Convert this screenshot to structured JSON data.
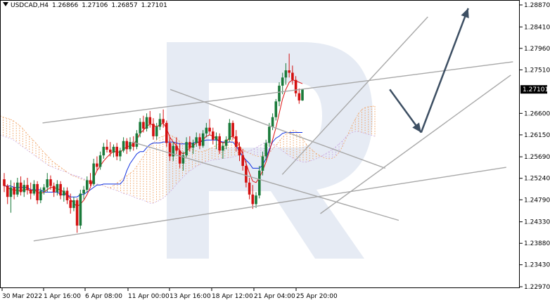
{
  "header": {
    "symbol": "USDCAD,H4",
    "open": "1.26866",
    "high": "1.27106",
    "low": "1.26857",
    "close": "1.27101"
  },
  "chart_data": {
    "type": "candlestick",
    "symbol": "USDCAD",
    "timeframe": "H4",
    "current_price": 1.27101,
    "ylim": [
      1.2297,
      1.2887
    ],
    "y_ticks": [
      1.2887,
      1.2841,
      1.2796,
      1.2751,
      1.266,
      1.2615,
      1.2569,
      1.2524,
      1.2479,
      1.2433,
      1.2388,
      1.2343,
      1.2297
    ],
    "y_tick_labels": [
      "1.28870",
      "1.28410",
      "1.27960",
      "1.27510",
      "1.26600",
      "1.26150",
      "1.25690",
      "1.25240",
      "1.24790",
      "1.24330",
      "1.23880",
      "1.23430",
      "1.22970"
    ],
    "x_tick_labels": [
      "30 Mar 2022",
      "1 Apr 16:00",
      "6 Apr 08:00",
      "11 Apr 00:00",
      "13 Apr 16:00",
      "18 Apr 12:00",
      "21 Apr 04:00",
      "25 Apr 20:00"
    ],
    "x_tick_bar_index": [
      0,
      14,
      32,
      50,
      68,
      86,
      104,
      122
    ],
    "total_slots": 232,
    "candles": [
      [
        1.2522,
        1.2535,
        1.2495,
        1.2508
      ],
      [
        1.2508,
        1.2512,
        1.247,
        1.2485
      ],
      [
        1.2485,
        1.252,
        1.2452,
        1.2505
      ],
      [
        1.2505,
        1.2515,
        1.248,
        1.249
      ],
      [
        1.249,
        1.2525,
        1.2485,
        1.2515
      ],
      [
        1.2515,
        1.2528,
        1.2488,
        1.2495
      ],
      [
        1.2495,
        1.252,
        1.2485,
        1.251
      ],
      [
        1.251,
        1.2525,
        1.249,
        1.25
      ],
      [
        1.25,
        1.2515,
        1.248,
        1.2492
      ],
      [
        1.2492,
        1.252,
        1.2488,
        1.2512
      ],
      [
        1.2512,
        1.2518,
        1.247,
        1.2478
      ],
      [
        1.2478,
        1.2505,
        1.2472,
        1.2498
      ],
      [
        1.2498,
        1.2512,
        1.249,
        1.2505
      ],
      [
        1.2505,
        1.2535,
        1.2495,
        1.2522
      ],
      [
        1.2522,
        1.253,
        1.25,
        1.2508
      ],
      [
        1.2508,
        1.2515,
        1.2485,
        1.2495
      ],
      [
        1.2495,
        1.252,
        1.2488,
        1.2512
      ],
      [
        1.2512,
        1.2518,
        1.248,
        1.2488
      ],
      [
        1.2488,
        1.2505,
        1.2475,
        1.2498
      ],
      [
        1.2498,
        1.2505,
        1.247,
        1.2478
      ],
      [
        1.2478,
        1.2492,
        1.245,
        1.2462
      ],
      [
        1.2462,
        1.2485,
        1.2455,
        1.2478
      ],
      [
        1.2478,
        1.2482,
        1.241,
        1.2425
      ],
      [
        1.2425,
        1.25,
        1.2418,
        1.2492
      ],
      [
        1.2492,
        1.2508,
        1.248,
        1.25
      ],
      [
        1.25,
        1.2528,
        1.2495,
        1.252
      ],
      [
        1.252,
        1.2535,
        1.2508,
        1.2512
      ],
      [
        1.2512,
        1.2565,
        1.2508,
        1.2555
      ],
      [
        1.2555,
        1.257,
        1.254,
        1.2548
      ],
      [
        1.2548,
        1.258,
        1.2542,
        1.2572
      ],
      [
        1.2572,
        1.2598,
        1.2565,
        1.259
      ],
      [
        1.259,
        1.2605,
        1.2578,
        1.2584
      ],
      [
        1.2584,
        1.26,
        1.257,
        1.2578
      ],
      [
        1.2578,
        1.2595,
        1.2568,
        1.259
      ],
      [
        1.259,
        1.2598,
        1.2562,
        1.257
      ],
      [
        1.257,
        1.2588,
        1.256,
        1.2582
      ],
      [
        1.2582,
        1.261,
        1.2578,
        1.2602
      ],
      [
        1.2602,
        1.2608,
        1.2575,
        1.2585
      ],
      [
        1.2585,
        1.261,
        1.258,
        1.26
      ],
      [
        1.26,
        1.2612,
        1.2582,
        1.259
      ],
      [
        1.259,
        1.2625,
        1.2585,
        1.2618
      ],
      [
        1.2618,
        1.265,
        1.261,
        1.2642
      ],
      [
        1.2642,
        1.2655,
        1.262,
        1.2628
      ],
      [
        1.2628,
        1.266,
        1.2622,
        1.2652
      ],
      [
        1.2652,
        1.2665,
        1.263,
        1.2638
      ],
      [
        1.2638,
        1.265,
        1.2605,
        1.2612
      ],
      [
        1.2612,
        1.264,
        1.2605,
        1.2632
      ],
      [
        1.2632,
        1.266,
        1.2625,
        1.2648
      ],
      [
        1.2648,
        1.2668,
        1.263,
        1.264
      ],
      [
        1.264,
        1.2645,
        1.259,
        1.2598
      ],
      [
        1.2598,
        1.261,
        1.256,
        1.257
      ],
      [
        1.257,
        1.26,
        1.256,
        1.2592
      ],
      [
        1.2592,
        1.261,
        1.2575,
        1.2582
      ],
      [
        1.2582,
        1.2598,
        1.2545,
        1.2555
      ],
      [
        1.2555,
        1.258,
        1.254,
        1.2572
      ],
      [
        1.2572,
        1.261,
        1.2568,
        1.26
      ],
      [
        1.26,
        1.2612,
        1.258,
        1.2588
      ],
      [
        1.2588,
        1.2605,
        1.2575,
        1.2598
      ],
      [
        1.2598,
        1.262,
        1.259,
        1.261
      ],
      [
        1.261,
        1.2618,
        1.2585,
        1.2592
      ],
      [
        1.2592,
        1.2625,
        1.2588,
        1.2618
      ],
      [
        1.2618,
        1.264,
        1.261,
        1.263
      ],
      [
        1.263,
        1.2648,
        1.2615,
        1.2622
      ],
      [
        1.2622,
        1.263,
        1.2595,
        1.2605
      ],
      [
        1.2605,
        1.262,
        1.2585,
        1.2612
      ],
      [
        1.2612,
        1.2618,
        1.2575,
        1.2582
      ],
      [
        1.2582,
        1.26,
        1.2565,
        1.2592
      ],
      [
        1.2592,
        1.2612,
        1.2585,
        1.2605
      ],
      [
        1.2605,
        1.2648,
        1.26,
        1.264
      ],
      [
        1.264,
        1.2645,
        1.2605,
        1.2612
      ],
      [
        1.2612,
        1.2625,
        1.258,
        1.259
      ],
      [
        1.259,
        1.26,
        1.256,
        1.2572
      ],
      [
        1.2572,
        1.2585,
        1.254,
        1.255
      ],
      [
        1.255,
        1.256,
        1.2505,
        1.2515
      ],
      [
        1.2515,
        1.2525,
        1.248,
        1.249
      ],
      [
        1.249,
        1.251,
        1.246,
        1.247
      ],
      [
        1.247,
        1.2495,
        1.2462,
        1.2488
      ],
      [
        1.2488,
        1.255,
        1.2482,
        1.254
      ],
      [
        1.254,
        1.258,
        1.253,
        1.257
      ],
      [
        1.257,
        1.2605,
        1.2562,
        1.2598
      ],
      [
        1.2598,
        1.264,
        1.259,
        1.2632
      ],
      [
        1.2632,
        1.266,
        1.2625,
        1.2652
      ],
      [
        1.2652,
        1.269,
        1.2645,
        1.2685
      ],
      [
        1.2685,
        1.2725,
        1.2675,
        1.2718
      ],
      [
        1.2718,
        1.2745,
        1.27,
        1.2735
      ],
      [
        1.2735,
        1.2765,
        1.272,
        1.275
      ],
      [
        1.275,
        1.2785,
        1.2735,
        1.2745
      ],
      [
        1.2745,
        1.276,
        1.272,
        1.273
      ],
      [
        1.273,
        1.2738,
        1.2695,
        1.2702
      ],
      [
        1.2702,
        1.2712,
        1.268,
        1.2687
      ],
      [
        1.2687,
        1.2711,
        1.2686,
        1.271
      ]
    ],
    "tenkan": [
      1.251,
      1.2505,
      1.25,
      1.25,
      1.2498,
      1.2498,
      1.25,
      1.25,
      1.2498,
      1.25,
      1.2495,
      1.2492,
      1.2495,
      1.25,
      1.2505,
      1.2505,
      1.2502,
      1.25,
      1.2495,
      1.249,
      1.248,
      1.2472,
      1.2465,
      1.247,
      1.2478,
      1.249,
      1.2505,
      1.2525,
      1.254,
      1.255,
      1.256,
      1.2568,
      1.2575,
      1.258,
      1.258,
      1.2578,
      1.2585,
      1.259,
      1.2592,
      1.2595,
      1.2605,
      1.2618,
      1.2625,
      1.2632,
      1.2638,
      1.2635,
      1.2632,
      1.2636,
      1.264,
      1.2628,
      1.261,
      1.26,
      1.2592,
      1.258,
      1.2575,
      1.258,
      1.2588,
      1.2592,
      1.2598,
      1.26,
      1.2605,
      1.2612,
      1.2615,
      1.2612,
      1.2608,
      1.26,
      1.2598,
      1.26,
      1.261,
      1.2612,
      1.2605,
      1.2592,
      1.2575,
      1.2555,
      1.2535,
      1.2518,
      1.2515,
      1.2525,
      1.254,
      1.2558,
      1.258,
      1.2605,
      1.263,
      1.266,
      1.269,
      1.271,
      1.2725,
      1.273,
      1.2728,
      1.2725,
      1.2722
    ],
    "kijun": [
      1.2508,
      1.2508,
      1.2508,
      1.2505,
      1.2505,
      1.2505,
      1.2505,
      1.2505,
      1.25,
      1.25,
      1.25,
      1.25,
      1.2495,
      1.2495,
      1.2495,
      1.2495,
      1.2495,
      1.249,
      1.249,
      1.249,
      1.2485,
      1.2485,
      1.2485,
      1.249,
      1.249,
      1.2495,
      1.25,
      1.2505,
      1.251,
      1.251,
      1.2512,
      1.2512,
      1.2512,
      1.2512,
      1.2512,
      1.2512,
      1.252,
      1.254,
      1.2555,
      1.2565,
      1.2575,
      1.258,
      1.258,
      1.2588,
      1.2595,
      1.2598,
      1.2598,
      1.2598,
      1.26,
      1.26,
      1.26,
      1.26,
      1.2598,
      1.2596,
      1.2596,
      1.2596,
      1.2596,
      1.2598,
      1.26,
      1.26,
      1.2602,
      1.2604,
      1.2604,
      1.2604,
      1.2604,
      1.2602,
      1.26,
      1.26,
      1.26,
      1.26,
      1.2592,
      1.258,
      1.257,
      1.2562,
      1.2555,
      1.2545,
      1.2545,
      1.2545,
      1.2552,
      1.2565,
      1.2585,
      1.26,
      1.2608,
      1.2612,
      1.2618,
      1.262,
      1.262,
      1.262,
      1.262,
      1.262,
      1.262
    ],
    "cloud_a": [
      1.2655,
      1.2652,
      1.265,
      1.2648,
      1.2645,
      1.264,
      1.2635,
      1.2628,
      1.262,
      1.2612,
      1.2605,
      1.2598,
      1.259,
      1.2582,
      1.2575,
      1.2568,
      1.256,
      1.2555,
      1.255,
      1.2545,
      1.254,
      1.2535,
      1.253,
      1.2528,
      1.2525,
      1.2522,
      1.252,
      1.2518,
      1.2515,
      1.2512,
      1.251,
      1.251,
      1.2508,
      1.2505,
      1.2505,
      1.251,
      1.2515,
      1.252,
      1.2525,
      1.253,
      1.2535,
      1.254,
      1.255,
      1.256,
      1.257,
      1.258,
      1.259,
      1.2598,
      1.2605,
      1.261,
      1.2612,
      1.2615,
      1.2615,
      1.2612,
      1.2608,
      1.2602,
      1.2598,
      1.2592,
      1.2588,
      1.2585,
      1.2582,
      1.258,
      1.258,
      1.2582,
      1.2585,
      1.2588,
      1.2592,
      1.2596,
      1.26,
      1.2603,
      1.2605,
      1.2605,
      1.26,
      1.2594,
      1.2588,
      1.2582,
      1.2578,
      1.2575,
      1.2572,
      1.257,
      1.257,
      1.2572,
      1.2575,
      1.258,
      1.2588,
      1.2596,
      1.2605,
      1.2612,
      1.2618,
      1.2622,
      1.2625,
      1.2622,
      1.2615,
      1.2605,
      1.2595,
      1.2588,
      1.2582,
      1.2576,
      1.2572,
      1.2568,
      1.2566,
      1.2565,
      1.2566,
      1.257,
      1.2578,
      1.259,
      1.2605,
      1.262,
      1.2635,
      1.2648,
      1.266,
      1.2668,
      1.2672,
      1.2674,
      1.2675,
      1.2675
    ],
    "cloud_b": [
      1.2615,
      1.2612,
      1.261,
      1.2608,
      1.2605,
      1.26,
      1.2595,
      1.259,
      1.2585,
      1.258,
      1.2575,
      1.257,
      1.2565,
      1.256,
      1.2555,
      1.255,
      1.2548,
      1.2545,
      1.2542,
      1.254,
      1.2538,
      1.2535,
      1.2532,
      1.253,
      1.2528,
      1.2525,
      1.2522,
      1.252,
      1.2518,
      1.2515,
      1.2512,
      1.251,
      1.2508,
      1.2505,
      1.2502,
      1.25,
      1.2498,
      1.2495,
      1.2492,
      1.249,
      1.2488,
      1.2485,
      1.2482,
      1.248,
      1.2478,
      1.2475,
      1.2472,
      1.2472,
      1.2475,
      1.2478,
      1.2482,
      1.2488,
      1.2495,
      1.2502,
      1.251,
      1.2518,
      1.2525,
      1.2532,
      1.2538,
      1.2543,
      1.2548,
      1.2552,
      1.2555,
      1.2558,
      1.256,
      1.2562,
      1.2563,
      1.2564,
      1.2565,
      1.2566,
      1.2567,
      1.2568,
      1.257,
      1.2572,
      1.2575,
      1.2578,
      1.258,
      1.2583,
      1.2586,
      1.259,
      1.2594,
      1.2598,
      1.26,
      1.2598,
      1.2595,
      1.259,
      1.2585,
      1.258,
      1.2575,
      1.257,
      1.2566,
      1.2562,
      1.256,
      1.2558,
      1.2558,
      1.256,
      1.2562,
      1.2565,
      1.2568,
      1.2572,
      1.2576,
      1.258,
      1.2585,
      1.259,
      1.2596,
      1.2602,
      1.261,
      1.2616,
      1.262,
      1.2622,
      1.2622,
      1.262,
      1.2618,
      1.2616,
      1.2614,
      1.2612
    ],
    "channels": [
      {
        "name": "upper-channel-top",
        "from": [
          19,
          1.264
        ],
        "to": [
          229,
          1.2768
        ]
      },
      {
        "name": "upper-channel-bottom",
        "from": [
          15,
          1.2393
        ],
        "to": [
          226,
          1.2547
        ]
      },
      {
        "name": "falling-channel-top",
        "from": [
          76,
          1.271
        ],
        "to": [
          172,
          1.2545
        ]
      },
      {
        "name": "falling-channel-bottom",
        "from": [
          59,
          1.26
        ],
        "to": [
          178,
          1.2436
        ]
      },
      {
        "name": "rising-channel-top",
        "from": [
          126,
          1.2532
        ],
        "to": [
          191,
          1.2862
        ]
      },
      {
        "name": "rising-channel-bottom",
        "from": [
          143,
          1.245
        ],
        "to": [
          228,
          1.274
        ]
      }
    ],
    "forecast": [
      [
        174,
        1.271
      ],
      [
        188,
        1.262
      ],
      [
        209,
        1.288
      ]
    ],
    "grid": false,
    "legend": "none"
  }
}
